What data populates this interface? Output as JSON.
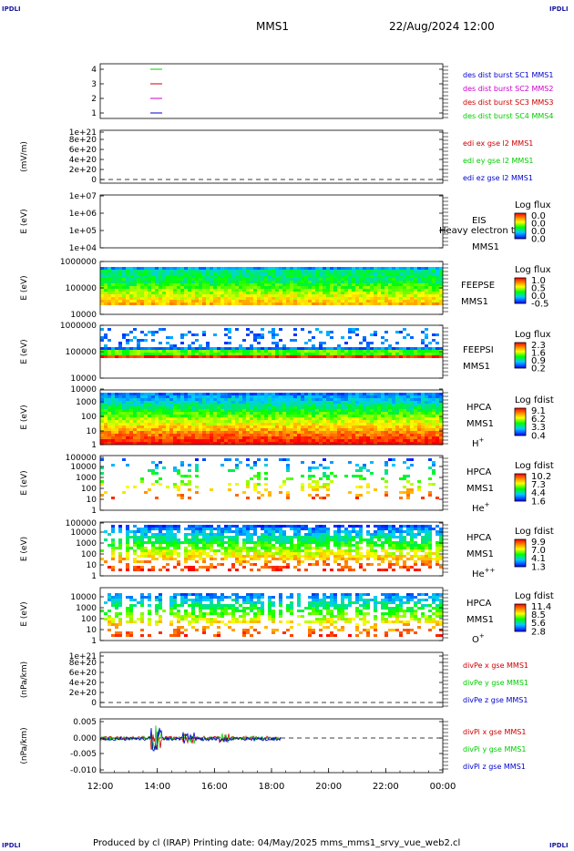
{
  "corners": {
    "tl": "IPDLI",
    "tr": "IPDLI",
    "bl": "IPDLI",
    "br": "IPDLI"
  },
  "header": {
    "spacecraft": "MMS1",
    "datetime": "22/Aug/2024 12:00"
  },
  "footer": "Produced by cl (IRAP)   Printing date: 04/May/2025   mms_mms1_srvy_vue_web2.cl",
  "colors": {
    "black": "#000000",
    "blue": "#0000cc",
    "green": "#00cc00",
    "red": "#cc0000",
    "magenta": "#cc00cc"
  },
  "chart_data": [
    {
      "id": "p1",
      "type": "line",
      "yticks": [
        "1",
        "2",
        "3",
        "4"
      ],
      "legend": [
        {
          "label": "des dist burst SC1 MMS1",
          "color": "#0000cc"
        },
        {
          "label": "des dist burst SC2 MMS2",
          "color": "#cc00cc"
        },
        {
          "label": "des dist burst SC3 MMS3",
          "color": "#cc0000"
        },
        {
          "label": "des dist burst SC4 MMS4",
          "color": "#00cc00"
        }
      ]
    },
    {
      "id": "p2",
      "type": "line",
      "ylabel": "(mV/m)",
      "yticks": [
        "0",
        "2e+20",
        "4e+20",
        "6e+20",
        "8e+20",
        "1e+21"
      ],
      "legend": [
        {
          "label": "edi ex gse l2 MMS1",
          "color": "#cc0000"
        },
        {
          "label": "edi ey gse l2 MMS1",
          "color": "#00cc00"
        },
        {
          "label": "edi ez gse l2 MMS1",
          "color": "#0000cc"
        }
      ]
    },
    {
      "id": "p3",
      "type": "heatmap",
      "ylabel": "E (eV)",
      "yticks": [
        "1e+04",
        "1e+05",
        "1e+06",
        "1e+07"
      ],
      "labels": [
        "EIS",
        "MMS1"
      ],
      "overlay": "Heavy electron to",
      "colorbar": {
        "title": "Log flux",
        "ticks": [
          "0.0",
          "0.0",
          "0.0",
          "0.0"
        ]
      }
    },
    {
      "id": "p4",
      "type": "heatmap",
      "ylabel": "E (eV)",
      "yticks": [
        "10000",
        "100000",
        "1000000"
      ],
      "labels": [
        "FEEPSE",
        "MMS1"
      ],
      "colorbar": {
        "title": "Log flux",
        "ticks": [
          "1.0",
          "0.5",
          "0.0",
          "-0.5"
        ]
      }
    },
    {
      "id": "p5",
      "type": "heatmap",
      "ylabel": "E (eV)",
      "yticks": [
        "10000",
        "100000",
        "1000000"
      ],
      "labels": [
        "FEEPSI",
        "MMS1"
      ],
      "colorbar": {
        "title": "Log flux",
        "ticks": [
          "2.3",
          "1.6",
          "0.9",
          "0.2"
        ]
      }
    },
    {
      "id": "p6",
      "type": "heatmap",
      "ylabel": "E (eV)",
      "yticks": [
        "1",
        "10",
        "100",
        "1000",
        "10000"
      ],
      "labels": [
        "HPCA",
        "MMS1"
      ],
      "species": "H",
      "species_sup": "+",
      "colorbar": {
        "title": "Log fdist",
        "ticks": [
          "9.1",
          "6.2",
          "3.3",
          "0.4"
        ]
      }
    },
    {
      "id": "p7",
      "type": "heatmap",
      "ylabel": "E (eV)",
      "yticks": [
        "1",
        "10",
        "100",
        "1000",
        "10000",
        "100000"
      ],
      "labels": [
        "HPCA",
        "MMS1"
      ],
      "species": "He",
      "species_sup": "+",
      "colorbar": {
        "title": "Log fdist",
        "ticks": [
          "10.2",
          "7.3",
          "4.4",
          "1.6"
        ]
      }
    },
    {
      "id": "p8",
      "type": "heatmap",
      "ylabel": "E (eV)",
      "yticks": [
        "1",
        "10",
        "100",
        "1000",
        "10000",
        "100000"
      ],
      "labels": [
        "HPCA",
        "MMS1"
      ],
      "species": "He",
      "species_sup": "++",
      "colorbar": {
        "title": "Log fdist",
        "ticks": [
          "9.9",
          "7.0",
          "4.1",
          "1.3"
        ]
      }
    },
    {
      "id": "p9",
      "type": "heatmap",
      "ylabel": "E (eV)",
      "yticks": [
        "1",
        "10",
        "100",
        "1000",
        "10000"
      ],
      "labels": [
        "HPCA",
        "MMS1"
      ],
      "species": "O",
      "species_sup": "+",
      "colorbar": {
        "title": "Log fdist",
        "ticks": [
          "11.4",
          "8.5",
          "5.6",
          "2.8"
        ]
      }
    },
    {
      "id": "p10",
      "type": "line",
      "ylabel": "(nPa/km)",
      "yticks": [
        "0",
        "2e+20",
        "4e+20",
        "6e+20",
        "8e+20",
        "1e+21"
      ],
      "legend": [
        {
          "label": "divPe x gse MMS1",
          "color": "#cc0000"
        },
        {
          "label": "divPe y gse MMS1",
          "color": "#00cc00"
        },
        {
          "label": "divPe z gse MMS1",
          "color": "#0000cc"
        }
      ]
    },
    {
      "id": "p11",
      "type": "line",
      "ylabel": "(nPa/km)",
      "yticks": [
        "-0.010",
        "-0.005",
        "0.000",
        "0.005"
      ],
      "legend": [
        {
          "label": "divPi x gse MMS1",
          "color": "#cc0000"
        },
        {
          "label": "divPi y gse MMS1",
          "color": "#00cc00"
        },
        {
          "label": "divPi z gse MMS1",
          "color": "#0000cc"
        }
      ]
    }
  ],
  "xaxis": {
    "ticks": [
      "12:00",
      "14:00",
      "16:00",
      "18:00",
      "20:00",
      "22:00",
      "00:00"
    ]
  }
}
